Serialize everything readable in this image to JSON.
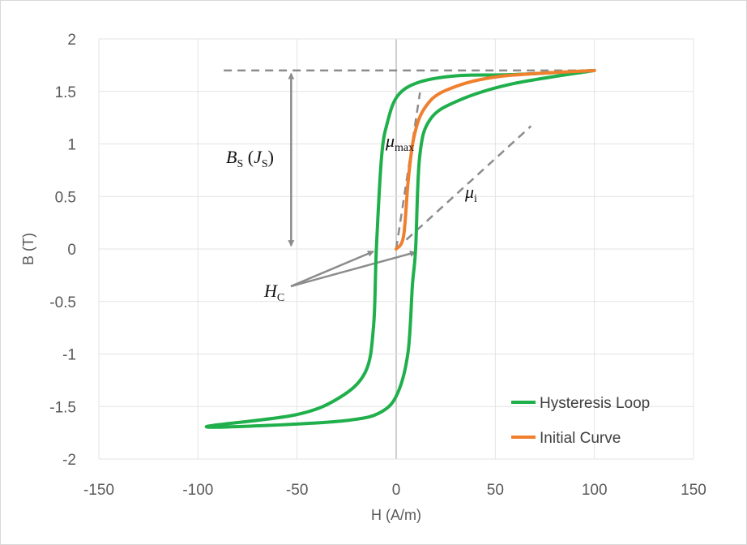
{
  "chart_data": {
    "type": "line",
    "title": "",
    "xlabel": "H (A/m)",
    "ylabel": "B (T)",
    "xlim": [
      -150,
      150
    ],
    "ylim": [
      -2,
      2
    ],
    "xticks": [
      -150,
      -100,
      -50,
      0,
      50,
      100,
      150
    ],
    "yticks": [
      2,
      1.5,
      1,
      0.5,
      0,
      -0.5,
      -1,
      -1.5,
      -2
    ],
    "grid": true,
    "legend_position": "bottom-right",
    "series": [
      {
        "name": "Hysteresis Loop",
        "color": "#1faf4b",
        "x": [
          100,
          58,
          31,
          11.8,
          0.8,
          -4.5,
          -7.4,
          -10,
          -11.4,
          -15.5,
          -29,
          -51,
          -95.6,
          -64.6,
          -23.7,
          -7.4,
          0.8,
          6,
          8.2,
          9.8,
          11.8,
          17,
          31,
          58,
          100
        ],
        "y": [
          1.7,
          1.66,
          1.65,
          1.59,
          1.46,
          1.2,
          0.87,
          0,
          -0.73,
          -1.17,
          -1.42,
          -1.58,
          -1.69,
          -1.68,
          -1.63,
          -1.55,
          -1.37,
          -0.98,
          -0.34,
          0,
          0.87,
          1.23,
          1.41,
          1.57,
          1.7
        ]
      },
      {
        "name": "Initial Curve",
        "color": "#f07f2e",
        "x": [
          0,
          3.7,
          6.1,
          9,
          14.3,
          25,
          51,
          100
        ],
        "y": [
          0,
          0.12,
          0.66,
          1.07,
          1.34,
          1.51,
          1.64,
          1.7
        ]
      }
    ],
    "annotations": {
      "saturation": {
        "main": "B",
        "sub": "S",
        "paren_main": "J",
        "paren_sub": "S"
      },
      "mu_max": {
        "main": "μ",
        "sub": "max"
      },
      "mu_i": {
        "main": "μ",
        "sub": "i"
      },
      "coercivity": {
        "main": "H",
        "sub": "C"
      }
    }
  }
}
